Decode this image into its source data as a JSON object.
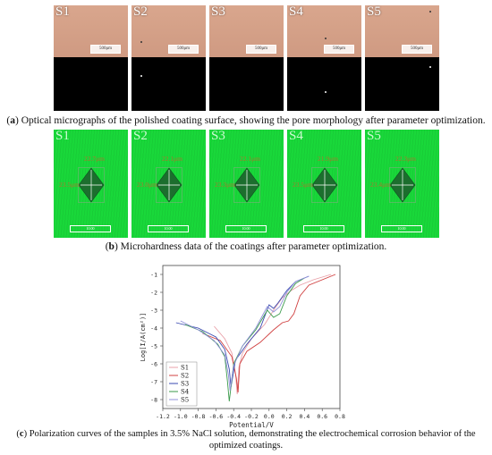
{
  "sample_labels": [
    "S1",
    "S2",
    "S3",
    "S4",
    "S5"
  ],
  "panel_a": {
    "scale_label": "500μm",
    "caption_letter": "a",
    "caption_text": " Optical micrographs of the polished coating surface, showing the pore morphology after parameter optimization."
  },
  "panel_b": {
    "measurements": [
      {
        "top": "22.7μm",
        "left": "23.5μm"
      },
      {
        "top": "22.1μm",
        "left": "23.0μm"
      },
      {
        "top": "22.1μm",
        "left": "23.3μm"
      },
      {
        "top": "21.9μm",
        "left": "23.5μm"
      },
      {
        "top": "22.3μm",
        "left": "23.4μm"
      }
    ],
    "scale_label": "10.00",
    "caption_letter": "b",
    "caption_text": " Microhardness data of the coatings after parameter optimization."
  },
  "panel_c": {
    "caption_letter": "c",
    "caption_text": " Polarization curves of the samples in 3.5% NaCl solution, demonstrating the electrochemical corrosion behavior of the optimized coatings."
  },
  "chart_data": {
    "type": "line",
    "xlabel": "Potential/V",
    "ylabel": "Log[I/A(cm²)]",
    "xlim": [
      -1.2,
      0.8
    ],
    "ylim": [
      -8.5,
      -0.5
    ],
    "xticks": [
      "-1.2",
      "-1.0",
      "-0.8",
      "-0.6",
      "-0.4",
      "-0.2",
      "0.0",
      "0.2",
      "0.4",
      "0.6",
      "0.8"
    ],
    "yticks": [
      "-1",
      "-2",
      "-3",
      "-4",
      "-5",
      "-6",
      "-7",
      "-8"
    ],
    "legend_position": "bottom-left",
    "series": [
      {
        "name": "S1",
        "color": "#e8a0a8",
        "x": [
          -0.62,
          -0.5,
          -0.42,
          -0.38,
          -0.36,
          -0.34,
          -0.3,
          -0.2,
          -0.05,
          0.05,
          0.15,
          0.25,
          0.35,
          0.5,
          0.7
        ],
        "y": [
          -3.9,
          -4.6,
          -5.4,
          -6.5,
          -7.7,
          -6.2,
          -5.4,
          -4.6,
          -3.8,
          -3.0,
          -2.3,
          -1.9,
          -1.6,
          -1.3,
          -1.0
        ]
      },
      {
        "name": "S2",
        "color": "#d04040",
        "x": [
          -0.75,
          -0.55,
          -0.42,
          -0.37,
          -0.35,
          -0.33,
          -0.25,
          -0.1,
          0.05,
          0.15,
          0.22,
          0.28,
          0.35,
          0.45,
          0.75
        ],
        "y": [
          -4.3,
          -4.7,
          -5.6,
          -6.8,
          -7.6,
          -6.0,
          -5.3,
          -4.8,
          -4.1,
          -3.7,
          -3.6,
          -3.2,
          -2.2,
          -1.6,
          -1.0
        ]
      },
      {
        "name": "S3",
        "color": "#3a4ab0",
        "x": [
          -1.05,
          -0.8,
          -0.6,
          -0.5,
          -0.45,
          -0.43,
          -0.38,
          -0.25,
          -0.1,
          0.0,
          0.05,
          0.1,
          0.2,
          0.3,
          0.45
        ],
        "y": [
          -3.7,
          -4.0,
          -4.5,
          -5.2,
          -6.3,
          -7.3,
          -5.8,
          -4.9,
          -4.0,
          -2.7,
          -2.9,
          -2.6,
          -1.9,
          -1.4,
          -1.1
        ]
      },
      {
        "name": "S4",
        "color": "#3a9a4a",
        "x": [
          -0.95,
          -0.75,
          -0.58,
          -0.5,
          -0.47,
          -0.45,
          -0.4,
          -0.3,
          -0.15,
          -0.02,
          0.05,
          0.12,
          0.2,
          0.3,
          0.4
        ],
        "y": [
          -3.8,
          -4.2,
          -4.9,
          -5.6,
          -7.0,
          -8.1,
          -6.0,
          -5.0,
          -4.1,
          -3.0,
          -3.4,
          -3.2,
          -2.2,
          -1.5,
          -1.2
        ]
      },
      {
        "name": "S5",
        "color": "#9090d8",
        "x": [
          -1.0,
          -0.8,
          -0.62,
          -0.5,
          -0.46,
          -0.44,
          -0.4,
          -0.3,
          -0.15,
          -0.02,
          0.05,
          0.12,
          0.2,
          0.3,
          0.45
        ],
        "y": [
          -3.6,
          -4.1,
          -4.7,
          -5.5,
          -6.6,
          -7.5,
          -6.1,
          -5.0,
          -4.0,
          -2.8,
          -3.1,
          -2.8,
          -2.0,
          -1.4,
          -1.1
        ]
      }
    ]
  }
}
